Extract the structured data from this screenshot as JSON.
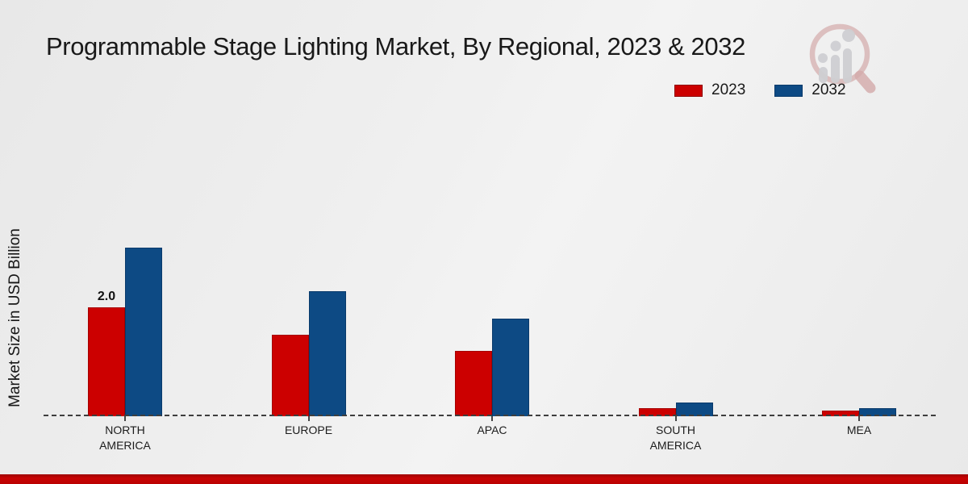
{
  "page": {
    "title": "Programmable Stage Lighting Market, By Regional, 2023 & 2032"
  },
  "axes": {
    "y_label": "Market Size in USD Billion"
  },
  "legend": {
    "items": [
      {
        "label": "2023",
        "color": "#cc0000",
        "border": "#8f0000"
      },
      {
        "label": "2032",
        "color": "#0d4a84",
        "border": "#093a6b"
      }
    ]
  },
  "logo": {
    "name": "magnifier-bar-chart-logo",
    "ring_color": "#cf9e9e",
    "bars_color": "#c9c9cd"
  },
  "footer": {
    "accent_color": "#c00000"
  },
  "chart_data": {
    "type": "bar",
    "title": "Programmable Stage Lighting Market, By Regional, 2023 & 2032",
    "categories": [
      "NORTH AMERICA",
      "EUROPE",
      "APAC",
      "SOUTH AMERICA",
      "MEA"
    ],
    "series": [
      {
        "name": "2023",
        "color": "#cc0000",
        "border": "#a50000",
        "values": [
          2.0,
          1.5,
          1.2,
          0.15,
          0.1
        ]
      },
      {
        "name": "2032",
        "color": "#0d4a84",
        "border": "#093a6b",
        "values": [
          3.1,
          2.3,
          1.8,
          0.25,
          0.15
        ]
      }
    ],
    "annotations": [
      {
        "series_index": 0,
        "category_index": 0,
        "text": "2.0"
      }
    ],
    "xlabel": "",
    "ylabel": "Market Size in USD Billion",
    "ylim": [
      0,
      3.5
    ],
    "grid": false,
    "baseline_style": "dashed",
    "legend_position": "top-right"
  }
}
